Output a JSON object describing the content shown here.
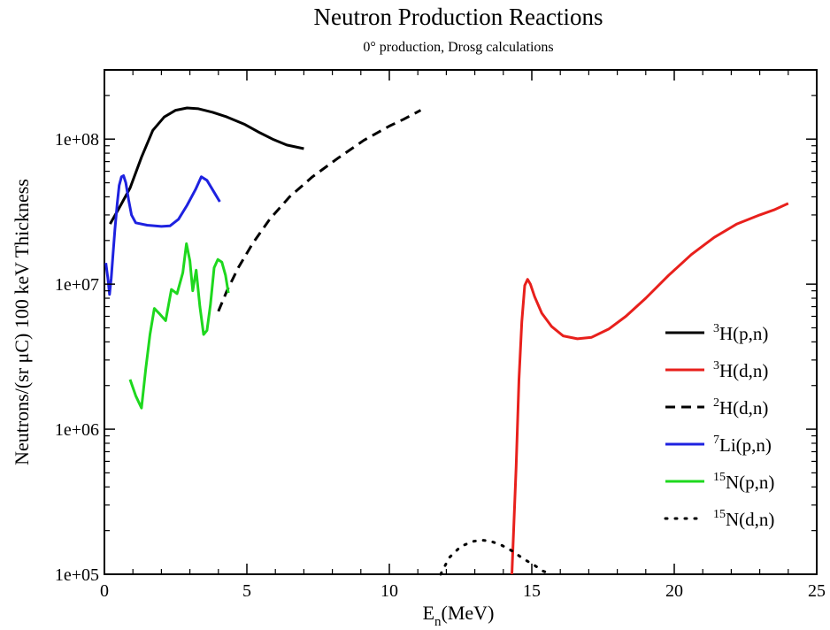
{
  "chart_data": {
    "type": "line",
    "title": "Neutron Production Reactions",
    "subtitle": "0° production, Drosg calculations",
    "xlabel": {
      "main": "E",
      "sub": "n",
      "rest": "(MeV)"
    },
    "ylabel": "Neutrons/(sr μC) 100 keV Thickness",
    "xlim": [
      0,
      25
    ],
    "ylim": [
      100000,
      300000000
    ],
    "yscale": "log",
    "grid": false,
    "legend_position": "right",
    "x_ticks": [
      {
        "value": 0,
        "label": "0"
      },
      {
        "value": 5,
        "label": "5"
      },
      {
        "value": 10,
        "label": "10"
      },
      {
        "value": 15,
        "label": "15"
      },
      {
        "value": 20,
        "label": "20"
      },
      {
        "value": 25,
        "label": "25"
      }
    ],
    "y_ticks": [
      {
        "value": 100000,
        "label": "1e+05"
      },
      {
        "value": 1000000,
        "label": "1e+06"
      },
      {
        "value": 10000000,
        "label": "1e+07"
      },
      {
        "value": 100000000,
        "label": "1e+08"
      }
    ],
    "series": [
      {
        "name": "3H(p,n)",
        "legend": {
          "sup": "3",
          "text": "H(p,n)"
        },
        "color": "#000000",
        "style": "solid",
        "points": [
          [
            0.2,
            26000000
          ],
          [
            0.5,
            33000000
          ],
          [
            0.9,
            46000000
          ],
          [
            1.3,
            75000000
          ],
          [
            1.7,
            115000000
          ],
          [
            2.1,
            142000000
          ],
          [
            2.5,
            158000000
          ],
          [
            2.9,
            164000000
          ],
          [
            3.3,
            162000000
          ],
          [
            3.8,
            153000000
          ],
          [
            4.3,
            142000000
          ],
          [
            4.9,
            127000000
          ],
          [
            5.4,
            112000000
          ],
          [
            5.9,
            100000000
          ],
          [
            6.4,
            91000000
          ],
          [
            7.0,
            86000000
          ]
        ]
      },
      {
        "name": "3H(d,n)",
        "legend": {
          "sup": "3",
          "text": "H(d,n)"
        },
        "color": "#e8201c",
        "style": "solid",
        "points": [
          [
            14.3,
            100000
          ],
          [
            14.45,
            550000
          ],
          [
            14.55,
            2200000
          ],
          [
            14.65,
            5500000
          ],
          [
            14.75,
            9800000
          ],
          [
            14.85,
            10800000
          ],
          [
            14.95,
            10000000
          ],
          [
            15.1,
            8200000
          ],
          [
            15.35,
            6300000
          ],
          [
            15.7,
            5100000
          ],
          [
            16.1,
            4400000
          ],
          [
            16.6,
            4200000
          ],
          [
            17.1,
            4300000
          ],
          [
            17.7,
            4900000
          ],
          [
            18.3,
            6000000
          ],
          [
            19.0,
            8000000
          ],
          [
            19.8,
            11500000
          ],
          [
            20.6,
            16000000
          ],
          [
            21.4,
            21000000
          ],
          [
            22.2,
            26000000
          ],
          [
            23.0,
            30000000
          ],
          [
            23.5,
            32500000
          ],
          [
            24.0,
            36000000
          ]
        ]
      },
      {
        "name": "2H(d,n)",
        "legend": {
          "sup": "2",
          "text": "H(d,n)"
        },
        "color": "#000000",
        "style": "dashed",
        "points": [
          [
            4.0,
            6500000
          ],
          [
            4.3,
            9000000
          ],
          [
            4.7,
            13000000
          ],
          [
            5.2,
            19000000
          ],
          [
            5.8,
            28000000
          ],
          [
            6.5,
            40000000
          ],
          [
            7.3,
            55000000
          ],
          [
            8.2,
            74000000
          ],
          [
            9.1,
            98000000
          ],
          [
            10.0,
            123000000
          ],
          [
            10.5,
            137000000
          ],
          [
            11.1,
            158000000
          ]
        ]
      },
      {
        "name": "7Li(p,n)",
        "legend": {
          "sup": "7",
          "text": "Li(p,n)"
        },
        "color": "#1e22e0",
        "style": "solid",
        "points": [
          [
            0.05,
            14000000
          ],
          [
            0.12,
            11000000
          ],
          [
            0.18,
            8500000
          ],
          [
            0.24,
            11000000
          ],
          [
            0.3,
            16000000
          ],
          [
            0.37,
            24000000
          ],
          [
            0.45,
            36000000
          ],
          [
            0.52,
            48000000
          ],
          [
            0.6,
            55000000
          ],
          [
            0.67,
            56000000
          ],
          [
            0.75,
            50000000
          ],
          [
            0.85,
            38000000
          ],
          [
            0.95,
            30000000
          ],
          [
            1.1,
            26500000
          ],
          [
            1.5,
            25500000
          ],
          [
            2.0,
            25000000
          ],
          [
            2.3,
            25200000
          ],
          [
            2.6,
            28000000
          ],
          [
            2.9,
            35000000
          ],
          [
            3.2,
            45000000
          ],
          [
            3.4,
            55000000
          ],
          [
            3.6,
            52000000
          ],
          [
            3.85,
            43000000
          ],
          [
            4.05,
            37000000
          ]
        ]
      },
      {
        "name": "15N(p,n)",
        "legend": {
          "sup": "15",
          "text": "N(p,n)"
        },
        "color": "#1ed81e",
        "style": "solid",
        "points": [
          [
            0.9,
            2200000
          ],
          [
            1.1,
            1700000
          ],
          [
            1.3,
            1400000
          ],
          [
            1.45,
            2600000
          ],
          [
            1.6,
            4500000
          ],
          [
            1.75,
            6800000
          ],
          [
            1.95,
            6200000
          ],
          [
            2.15,
            5600000
          ],
          [
            2.35,
            9200000
          ],
          [
            2.55,
            8600000
          ],
          [
            2.75,
            12000000
          ],
          [
            2.88,
            19000000
          ],
          [
            3.0,
            14500000
          ],
          [
            3.1,
            9000000
          ],
          [
            3.22,
            12500000
          ],
          [
            3.35,
            7000000
          ],
          [
            3.48,
            4500000
          ],
          [
            3.6,
            4800000
          ],
          [
            3.72,
            7200000
          ],
          [
            3.85,
            13000000
          ],
          [
            3.98,
            14800000
          ],
          [
            4.12,
            14200000
          ],
          [
            4.25,
            11500000
          ],
          [
            4.35,
            8700000
          ]
        ]
      },
      {
        "name": "15N(d,n)",
        "legend": {
          "sup": "15",
          "text": "N(d,n)"
        },
        "color": "#000000",
        "style": "dotted",
        "points": [
          [
            11.8,
            100000
          ],
          [
            12.1,
            130000
          ],
          [
            12.5,
            155000
          ],
          [
            12.9,
            168000
          ],
          [
            13.2,
            172000
          ],
          [
            13.5,
            170000
          ],
          [
            13.9,
            160000
          ],
          [
            14.3,
            145000
          ],
          [
            14.7,
            128000
          ],
          [
            15.1,
            115000
          ],
          [
            15.4,
            105000
          ],
          [
            15.7,
            100000
          ]
        ]
      }
    ]
  }
}
